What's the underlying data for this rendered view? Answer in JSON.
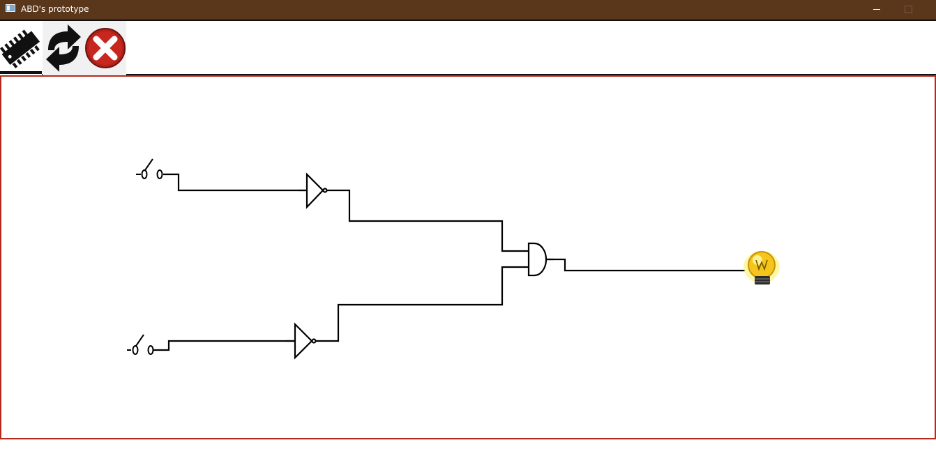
{
  "window": {
    "title": "ABD's prototype",
    "app_icon": "window-app-icon",
    "controls": [
      "minimize-icon",
      "maximize-icon"
    ],
    "title_bar_color": "#5a361b"
  },
  "toolbar": {
    "buttons": [
      {
        "name": "add-component-button",
        "icon": "chip-icon"
      },
      {
        "name": "refresh-button",
        "icon": "refresh-icon"
      },
      {
        "name": "clear-button",
        "icon": "close-icon"
      }
    ]
  },
  "canvas": {
    "border_color": "#b52a1f",
    "components": [
      {
        "type": "switch",
        "name": "input-switch-1"
      },
      {
        "type": "switch",
        "name": "input-switch-2"
      },
      {
        "type": "not-gate",
        "name": "not-gate-1"
      },
      {
        "type": "not-gate",
        "name": "not-gate-2"
      },
      {
        "type": "and-gate",
        "name": "and-gate"
      },
      {
        "type": "lamp",
        "name": "output-bulb",
        "icon": "light-bulb-icon"
      }
    ],
    "wire_color": "#000000"
  },
  "status": {}
}
